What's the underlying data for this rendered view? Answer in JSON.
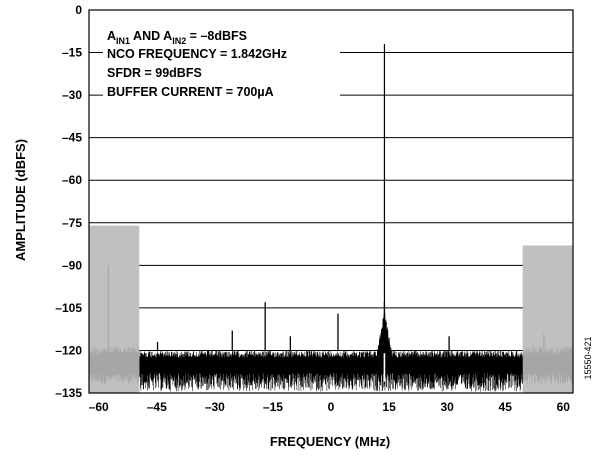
{
  "chart_data": {
    "type": "line",
    "xlabel": "FREQUENCY (MHz)",
    "ylabel": "AMPLITUDE (dBFS)",
    "xlim": [
      -62.5,
      62.5
    ],
    "ylim": [
      -135,
      0
    ],
    "x_ticks": [
      "–60",
      "–45",
      "–30",
      "–15",
      "0",
      "15",
      "30",
      "45",
      "60"
    ],
    "x_tick_values": [
      -60,
      -45,
      -30,
      -15,
      0,
      15,
      30,
      45,
      60
    ],
    "y_ticks": [
      "0",
      "–15",
      "–30",
      "–45",
      "–60",
      "–75",
      "–90",
      "–105",
      "–120",
      "–135"
    ],
    "y_tick_values": [
      0,
      -15,
      -30,
      -45,
      -60,
      -75,
      -90,
      -105,
      -120,
      -135
    ],
    "grid": "horizontal",
    "annotations": {
      "line1": {
        "a": "A",
        "sub1": "IN1",
        "mid": " AND A",
        "sub2": "IN2",
        "rest": " = –8dBFS"
      },
      "line2": "NCO FREQUENCY = 1.842GHz",
      "line3": "SFDR = 99dBFS",
      "line4": "BUFFER CURRENT = 700µA"
    },
    "figure_id": "15550-421",
    "carrier": {
      "x": 13.8,
      "y": -12
    },
    "noise_floor": [
      -128,
      -120
    ],
    "spurs": [
      {
        "x": -44.8,
        "y": -117
      },
      {
        "x": -25.5,
        "y": -113
      },
      {
        "x": -17,
        "y": -103
      },
      {
        "x": -10.5,
        "y": -115
      },
      {
        "x": 1.8,
        "y": -107
      },
      {
        "x": 13.8,
        "y": -103
      },
      {
        "x": 30.5,
        "y": -115
      }
    ],
    "shaded_regions": [
      {
        "x_range": [
          -62.5,
          -49.5
        ],
        "y_top": -76
      },
      {
        "x_range": [
          49.5,
          62.5
        ],
        "y_top": -83
      }
    ],
    "shaded_region_spurs": [
      {
        "x": -57.5,
        "y": -90
      },
      {
        "x": 55,
        "y": -114
      }
    ],
    "colors": {
      "trace": "#000000",
      "band": "#c0c0c0",
      "band_trace": "#a6a6a6",
      "grid": "#000000"
    }
  }
}
